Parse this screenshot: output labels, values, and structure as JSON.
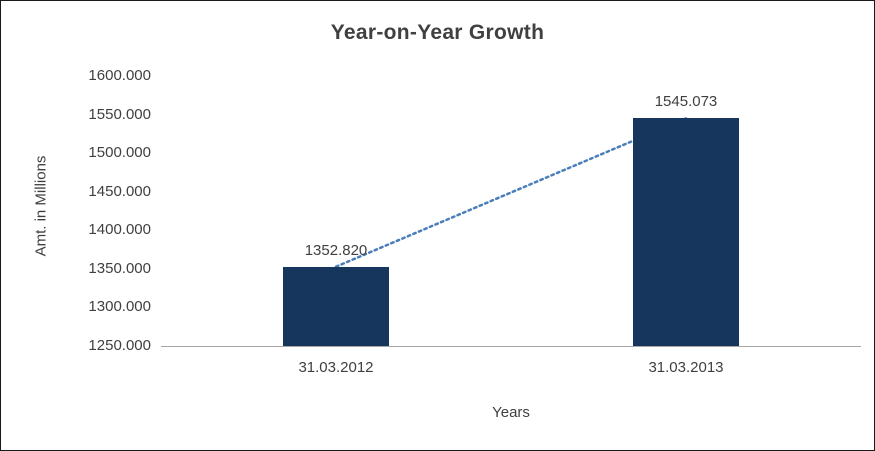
{
  "chart_data": {
    "type": "bar",
    "title": "Year-on-Year Growth",
    "categories": [
      "31.03.2012",
      "31.03.2013"
    ],
    "values": [
      1352.82,
      1545.073
    ],
    "value_labels": [
      "1352.820",
      "1545.073"
    ],
    "xlabel": "Years",
    "ylabel": "Amt. in Millions",
    "ylim": [
      1250,
      1600
    ],
    "yticks": [
      "1600.000",
      "1550.000",
      "1500.000",
      "1450.000",
      "1400.000",
      "1350.000",
      "1300.000",
      "1250.000"
    ],
    "grid": false,
    "legend": "none",
    "bar_color": "#16365d",
    "trendline": {
      "show": true,
      "style": "dotted",
      "color": "#4a7ebb"
    },
    "text_color": "#3f3f3f",
    "title_color": "#404040",
    "axis_line_color": "#a6a6a6",
    "border_color": "#1a1a1a"
  }
}
